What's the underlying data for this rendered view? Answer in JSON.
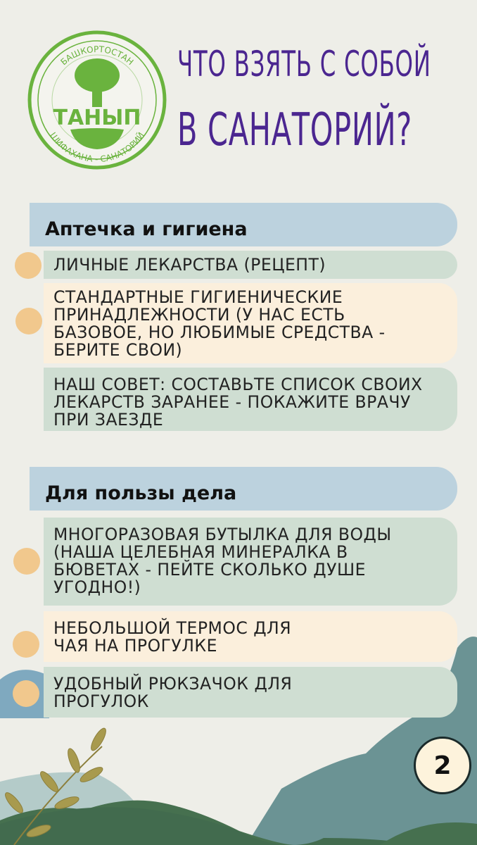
{
  "logo": {
    "top_text": "БАШКОРТОСТАН",
    "name": "ТАНЫП",
    "bottom_text": "ШИФАХАНА - САНАТОРИЙ",
    "color": "#6ab33e"
  },
  "title": {
    "line1": "ЧТО ВЗЯТЬ С СОБОЙ",
    "line2": "В САНАТОРИЙ?",
    "color": "#4b2690"
  },
  "sections": [
    {
      "heading": "Аптечка и гигиена",
      "items": [
        "ЛИЧНЫЕ ЛЕКАРСТВА (РЕЦЕПТ)",
        "СТАНДАРТНЫЕ ГИГИЕНИЧЕСКИЕ ПРИНАДЛЕЖНОСТИ (У НАС ЕСТЬ БАЗОВОЕ, НО ЛЮБИМЫЕ СРЕДСТВА - БЕРИТЕ СВОИ)",
        "НАШ СОВЕТ: СОСТАВЬТЕ СПИСОК СВОИХ ЛЕКАРСТВ ЗАРАНЕЕ - ПОКАЖИТЕ ВРАЧУ ПРИ ЗАЕЗДЕ"
      ]
    },
    {
      "heading": "Для пользы дела",
      "items": [
        "МНОГОРАЗОВАЯ БУТЫЛКА ДЛЯ ВОДЫ (НАША ЦЕЛЕБНАЯ МИНЕРАЛКА В БЮВЕТАХ - ПЕЙТЕ СКОЛЬКО ДУШЕ УГОДНО!)",
        "НЕБОЛЬШОЙ ТЕРМОС ДЛЯ ЧАЯ НА ПРОГУЛКЕ",
        "УДОБНЫЙ РЮКЗАЧОК ДЛЯ ПРОГУЛОК"
      ]
    }
  ],
  "page_number": "2"
}
